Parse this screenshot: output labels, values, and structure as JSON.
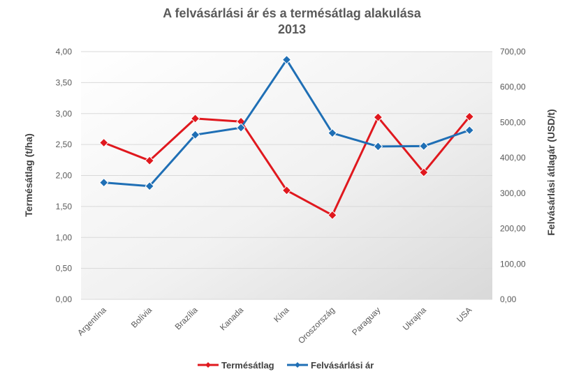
{
  "chart_data": {
    "type": "line",
    "title": "A felvásárlási ár és a termésátlag alakulása",
    "subtitle": "2013",
    "categories": [
      "Argentína",
      "Bolívia",
      "Brazília",
      "Kanada",
      "Kína",
      "Oroszország",
      "Paraguay",
      "Ukrajna",
      "USA"
    ],
    "y_left": {
      "label": "Termésátlag (t/ha)",
      "min": 0,
      "max": 4,
      "ticks": [
        "0,00",
        "0,50",
        "1,00",
        "1,50",
        "2,00",
        "2,50",
        "3,00",
        "3,50",
        "4,00"
      ]
    },
    "y_right": {
      "label": "Felvásárlási átlagár (USD/t)",
      "min": 0,
      "max": 700,
      "ticks": [
        "0,00",
        "100,00",
        "200,00",
        "300,00",
        "400,00",
        "500,00",
        "600,00",
        "700,00"
      ]
    },
    "series": [
      {
        "name": "Termésátlag",
        "axis": "left",
        "color": "#e0181e",
        "marker": "diamond",
        "values": [
          2.53,
          2.24,
          2.92,
          2.87,
          1.76,
          1.36,
          2.94,
          2.05,
          2.95
        ]
      },
      {
        "name": "Felvásárlási ár",
        "axis": "right",
        "color": "#1f6fb5",
        "marker": "diamond",
        "values": [
          330,
          320,
          465,
          485,
          677,
          470,
          432,
          433,
          478
        ]
      }
    ],
    "grid": true,
    "legend_position": "bottom",
    "plot_background": "gradient-grey"
  }
}
